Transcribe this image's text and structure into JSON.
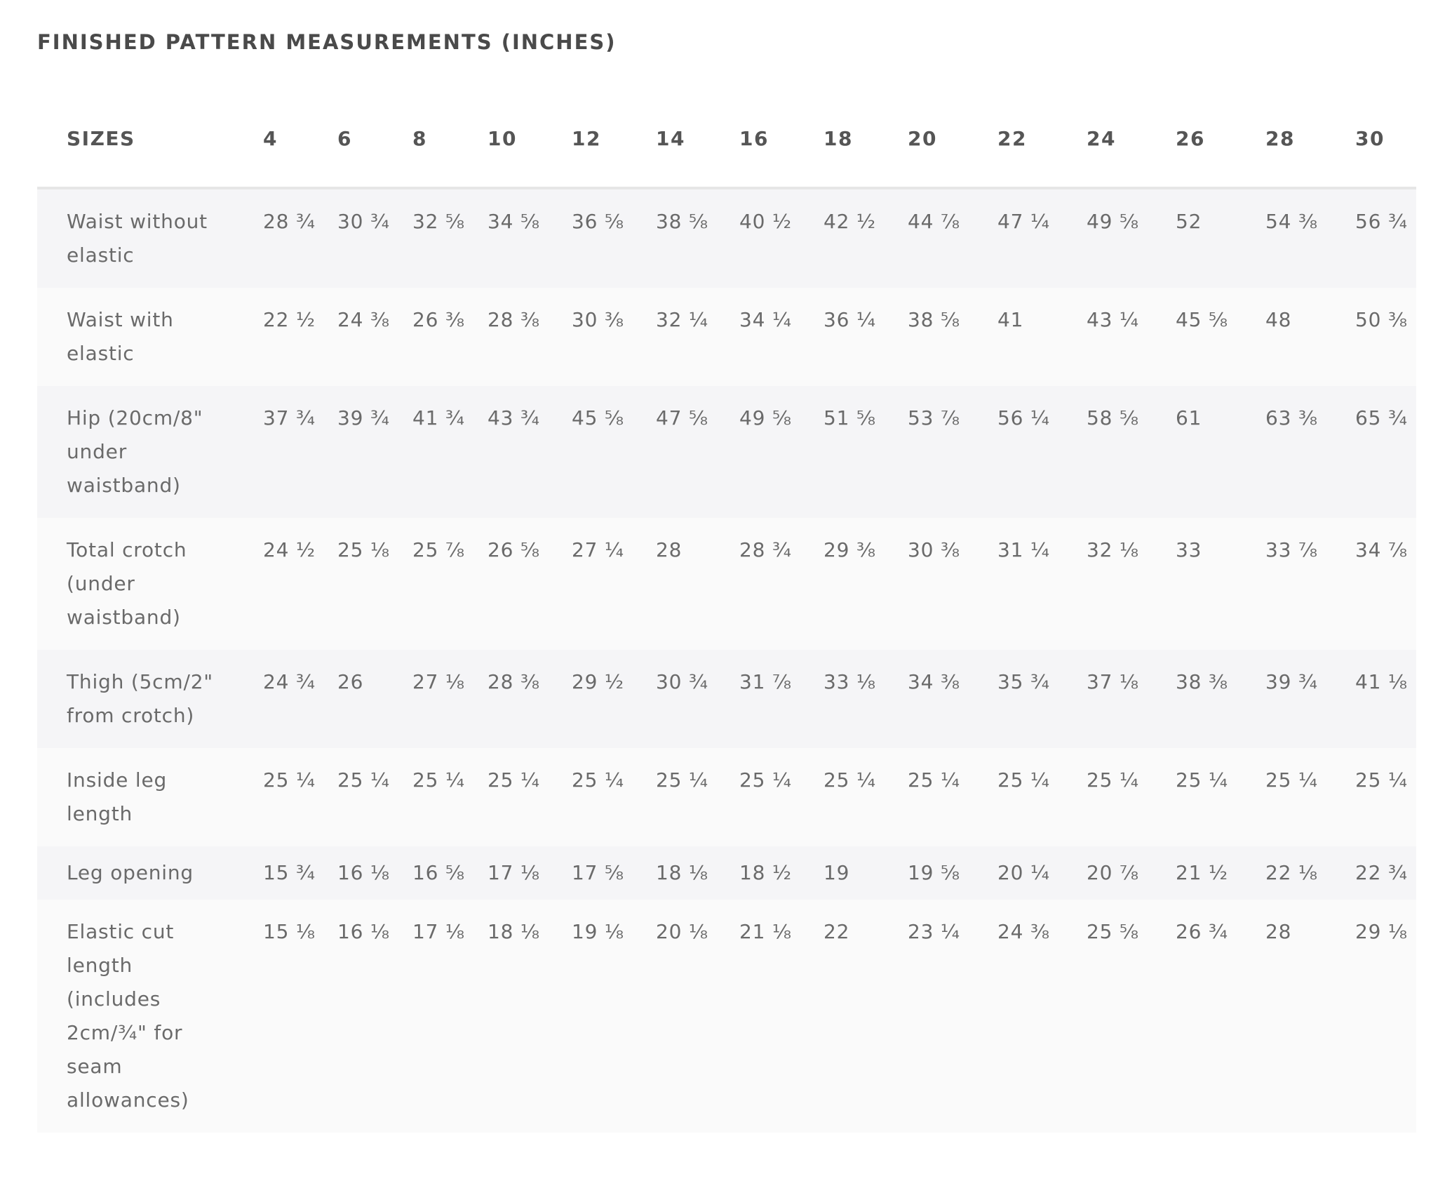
{
  "page_title": "FINISHED PATTERN MEASUREMENTS (INCHES)",
  "table": {
    "header_label": "SIZES",
    "sizes": [
      "4",
      "6",
      "8",
      "10",
      "12",
      "14",
      "16",
      "18",
      "20",
      "22",
      "24",
      "26",
      "28",
      "30"
    ],
    "rows": [
      {
        "label_lines": [
          "Waist without",
          "elastic"
        ],
        "values": [
          "28 ¾",
          "30 ¾",
          "32 ⅝",
          "34 ⅝",
          "36 ⅝",
          "38 ⅝",
          "40 ½",
          "42 ½",
          "44 ⅞",
          "47 ¼",
          "49 ⅝",
          "52",
          "54 ⅜",
          "56 ¾"
        ]
      },
      {
        "label_lines": [
          "Waist with",
          "elastic"
        ],
        "values": [
          "22 ½",
          "24 ⅜",
          "26 ⅜",
          "28 ⅜",
          "30 ⅜",
          "32 ¼",
          "34 ¼",
          "36 ¼",
          "38 ⅝",
          "41",
          "43 ¼",
          "45 ⅝",
          "48",
          "50 ⅜"
        ]
      },
      {
        "label_lines": [
          "Hip (20cm/8\"",
          "under",
          "waistband)"
        ],
        "values": [
          "37 ¾",
          "39 ¾",
          "41 ¾",
          "43 ¾",
          "45 ⅝",
          "47 ⅝",
          "49 ⅝",
          "51 ⅝",
          "53 ⅞",
          "56 ¼",
          "58 ⅝",
          "61",
          "63 ⅜",
          "65 ¾"
        ]
      },
      {
        "label_lines": [
          "Total crotch",
          "(under",
          "waistband)"
        ],
        "values": [
          "24 ½",
          "25 ⅛",
          "25 ⅞",
          "26 ⅝",
          "27 ¼",
          "28",
          "28 ¾",
          "29 ⅜",
          "30 ⅜",
          "31 ¼",
          "32 ⅛",
          "33",
          "33 ⅞",
          "34 ⅞"
        ]
      },
      {
        "label_lines": [
          "Thigh (5cm/2\"",
          "from crotch)"
        ],
        "values": [
          "24 ¾",
          "26",
          "27 ⅛",
          "28 ⅜",
          "29 ½",
          "30 ¾",
          "31 ⅞",
          "33 ⅛",
          "34 ⅜",
          "35 ¾",
          "37 ⅛",
          "38 ⅜",
          "39 ¾",
          "41 ⅛"
        ]
      },
      {
        "label_lines": [
          "Inside leg",
          "length"
        ],
        "values": [
          "25 ¼",
          "25 ¼",
          "25 ¼",
          "25 ¼",
          "25 ¼",
          "25 ¼",
          "25 ¼",
          "25 ¼",
          "25 ¼",
          "25 ¼",
          "25 ¼",
          "25 ¼",
          "25 ¼",
          "25 ¼"
        ]
      },
      {
        "label_lines": [
          "Leg opening"
        ],
        "values": [
          "15 ¾",
          "16 ⅛",
          "16 ⅝",
          "17 ⅛",
          "17 ⅝",
          "18 ⅛",
          "18 ½",
          "19",
          "19 ⅝",
          "20 ¼",
          "20 ⅞",
          "21 ½",
          "22 ⅛",
          "22 ¾"
        ]
      },
      {
        "label_lines": [
          "Elastic cut",
          "length",
          "(includes",
          "2cm/¾\" for",
          "seam",
          "allowances)"
        ],
        "values": [
          "15 ⅛",
          "16 ⅛",
          "17 ⅛",
          "18 ⅛",
          "19 ⅛",
          "20 ⅛",
          "21 ⅛",
          "22",
          "23 ¼",
          "24 ⅜",
          "25 ⅝",
          "26 ¾",
          "28",
          "29 ⅛"
        ]
      }
    ]
  }
}
